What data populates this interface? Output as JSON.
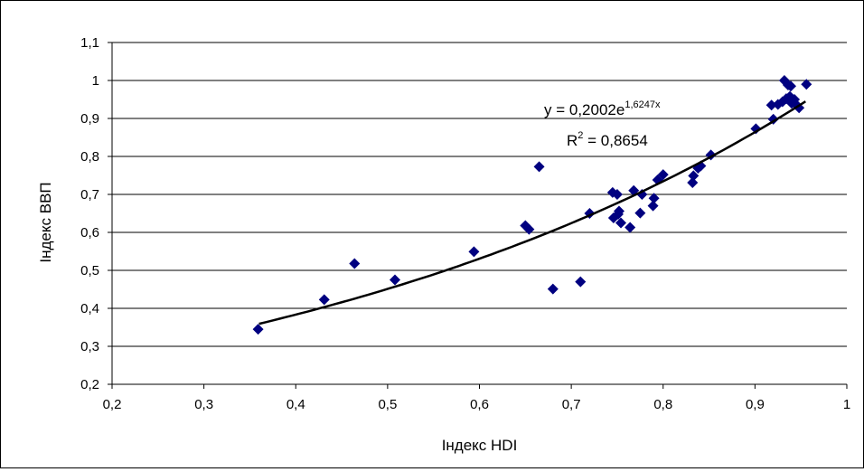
{
  "chart_data": {
    "type": "scatter",
    "xlabel": "Індекс HDI",
    "ylabel": "Індекс ВВП",
    "xlim": [
      0.2,
      1.0
    ],
    "ylim": [
      0.2,
      1.1
    ],
    "x_ticks": [
      "0,2",
      "0,3",
      "0,4",
      "0,5",
      "0,6",
      "0,7",
      "0,8",
      "0,9",
      "1"
    ],
    "y_ticks": [
      "0,2",
      "0,3",
      "0,4",
      "0,5",
      "0,6",
      "0,7",
      "0,8",
      "0,9",
      "1",
      "1,1"
    ],
    "grid": "horizontal",
    "marker": "diamond",
    "marker_color": "#000080",
    "trendline": {
      "type": "exponential",
      "a": 0.2002,
      "b": 1.6247,
      "x_range": [
        0.36,
        0.955
      ],
      "equation_label": "y = 0,2002e",
      "equation_exponent": "1,6247x",
      "r2_label": "R",
      "r2_exponent": "2",
      "r2_value": " = 0,8654",
      "color": "#000000"
    },
    "series": [
      {
        "points": [
          [
            0.359,
            0.345
          ],
          [
            0.431,
            0.423
          ],
          [
            0.464,
            0.518
          ],
          [
            0.508,
            0.475
          ],
          [
            0.594,
            0.549
          ],
          [
            0.65,
            0.618
          ],
          [
            0.654,
            0.608
          ],
          [
            0.665,
            0.773
          ],
          [
            0.68,
            0.451
          ],
          [
            0.71,
            0.47
          ],
          [
            0.72,
            0.65
          ],
          [
            0.745,
            0.705
          ],
          [
            0.746,
            0.638
          ],
          [
            0.75,
            0.7
          ],
          [
            0.751,
            0.648
          ],
          [
            0.752,
            0.656
          ],
          [
            0.754,
            0.625
          ],
          [
            0.764,
            0.613
          ],
          [
            0.768,
            0.71
          ],
          [
            0.775,
            0.651
          ],
          [
            0.777,
            0.7
          ],
          [
            0.789,
            0.67
          ],
          [
            0.79,
            0.69
          ],
          [
            0.794,
            0.738
          ],
          [
            0.8,
            0.752
          ],
          [
            0.832,
            0.731
          ],
          [
            0.833,
            0.749
          ],
          [
            0.838,
            0.769
          ],
          [
            0.841,
            0.775
          ],
          [
            0.852,
            0.804
          ],
          [
            0.901,
            0.873
          ],
          [
            0.918,
            0.935
          ],
          [
            0.92,
            0.898
          ],
          [
            0.925,
            0.937
          ],
          [
            0.93,
            0.944
          ],
          [
            0.932,
            1.0
          ],
          [
            0.934,
            0.952
          ],
          [
            0.936,
            0.988
          ],
          [
            0.938,
            0.958
          ],
          [
            0.939,
            0.985
          ],
          [
            0.94,
            0.94
          ],
          [
            0.943,
            0.95
          ],
          [
            0.945,
            0.936
          ],
          [
            0.948,
            0.928
          ],
          [
            0.956,
            0.99
          ]
        ]
      }
    ]
  }
}
